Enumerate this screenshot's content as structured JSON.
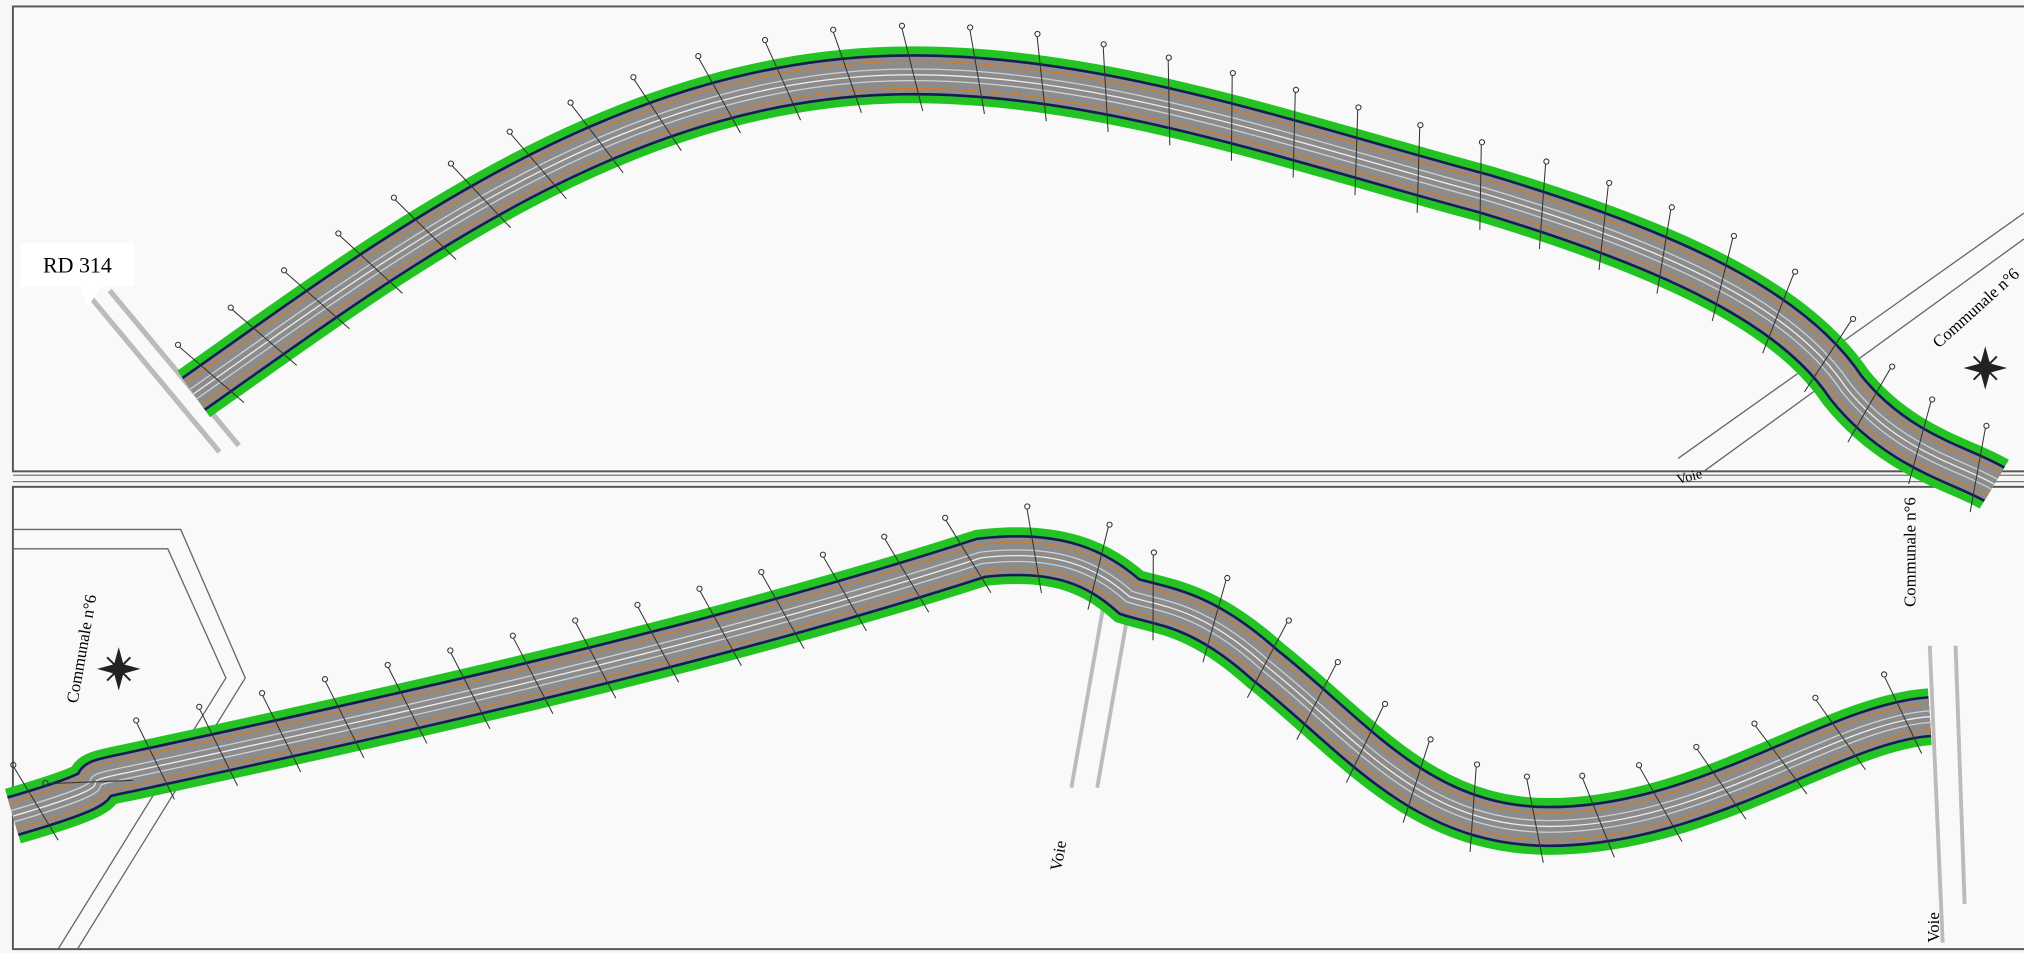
{
  "labels": {
    "road": "RD 314",
    "communale": "Communale n°6",
    "voie": "Voie"
  }
}
